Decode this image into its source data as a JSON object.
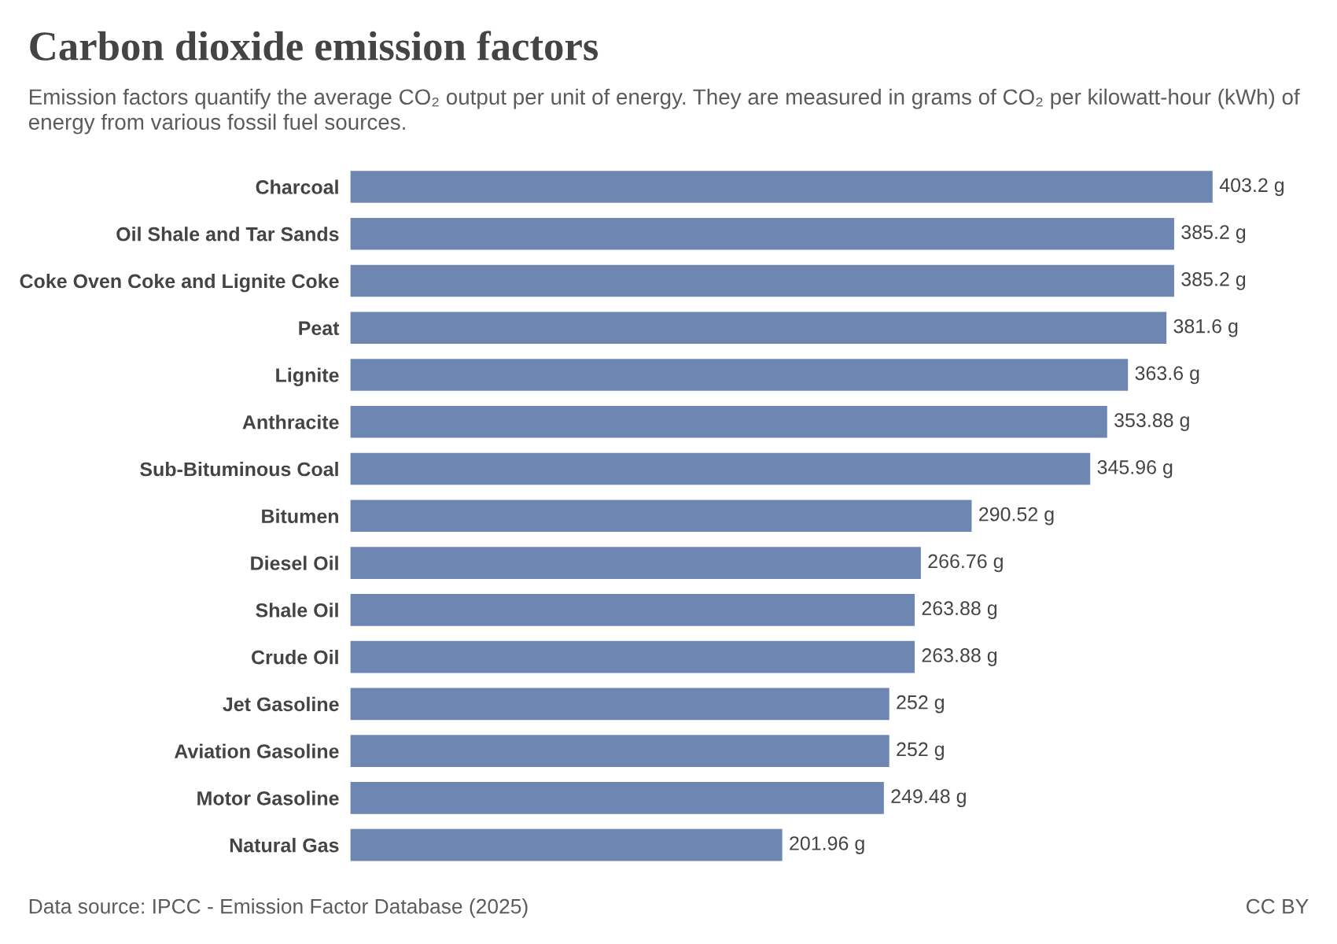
{
  "chart_data": {
    "type": "bar",
    "orientation": "horizontal",
    "title": "Carbon dioxide emission factors",
    "subtitle": "Emission factors quantify the average CO₂ output per unit of energy. They are measured in grams of CO₂ per kilowatt-hour (kWh) of energy from various fossil fuel sources.",
    "categories": [
      "Charcoal",
      "Oil Shale and Tar Sands",
      "Coke Oven Coke and Lignite Coke",
      "Peat",
      "Lignite",
      "Anthracite",
      "Sub-Bituminous Coal",
      "Bitumen",
      "Diesel Oil",
      "Shale Oil",
      "Crude Oil",
      "Jet Gasoline",
      "Aviation Gasoline",
      "Motor Gasoline",
      "Natural Gas"
    ],
    "values": [
      403.2,
      385.2,
      385.2,
      381.6,
      363.6,
      353.88,
      345.96,
      290.52,
      266.76,
      263.88,
      263.88,
      252,
      252,
      249.48,
      201.96
    ],
    "value_labels": [
      "403.2 g",
      "385.2 g",
      "385.2 g",
      "381.6 g",
      "363.6 g",
      "353.88 g",
      "345.96 g",
      "290.52 g",
      "266.76 g",
      "263.88 g",
      "263.88 g",
      "252 g",
      "252 g",
      "249.48 g",
      "201.96 g"
    ],
    "color": "#6d87b2",
    "grid": false,
    "legend": false,
    "annotations": [
      "Data source: IPCC - Emission Factor Database (2025)",
      "CC BY"
    ]
  }
}
